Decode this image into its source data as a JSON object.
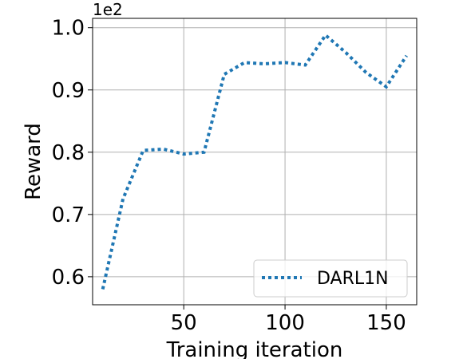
{
  "chart_data": {
    "type": "line",
    "title": "",
    "xlabel": "Training iteration",
    "ylabel": "Reward",
    "y_offset_label": "1e2",
    "xlim": [
      5,
      165
    ],
    "ylim": [
      0.555,
      1.015
    ],
    "x_ticks": [
      50,
      100,
      150
    ],
    "x_tick_labels": [
      "50",
      "100",
      "150"
    ],
    "y_ticks": [
      0.6,
      0.7,
      0.8,
      0.9,
      1.0
    ],
    "y_tick_labels": [
      "0.6",
      "0.7",
      "0.8",
      "0.9",
      "1.0"
    ],
    "grid": true,
    "legend_position": "lower-right",
    "series": [
      {
        "name": "DARL1N",
        "color": "#1f77b4",
        "style": "dotted",
        "x": [
          10,
          20,
          30,
          40,
          50,
          60,
          70,
          80,
          90,
          100,
          110,
          120,
          130,
          140,
          150,
          160
        ],
        "y": [
          0.58,
          0.725,
          0.803,
          0.805,
          0.797,
          0.8,
          0.925,
          0.944,
          0.942,
          0.944,
          0.94,
          0.988,
          0.96,
          0.928,
          0.905,
          0.955
        ]
      }
    ]
  }
}
